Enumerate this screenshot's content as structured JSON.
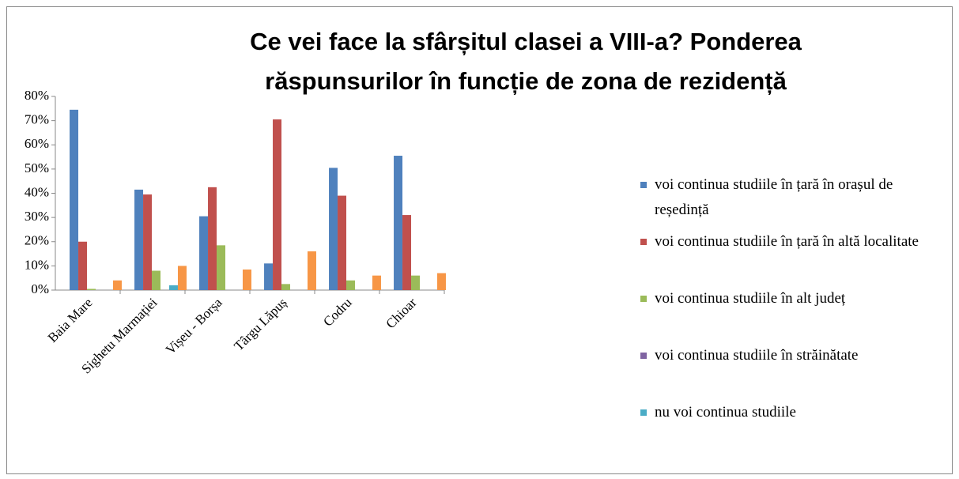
{
  "chart_data": {
    "type": "bar",
    "title": "Ce vei face la sfârșitul clasei a VIII-a? Ponderea răspunsurilor în funcție de zona de rezidență",
    "categories": [
      "Baia Mare",
      "Sighetu Marmației",
      "Vișeu - Borșa",
      "Târgu Lăpuș",
      "Codru",
      "Chioar"
    ],
    "series": [
      {
        "name": "voi continua studiile în țară în orașul de reședință",
        "color": "#4f81bd",
        "values": [
          74.5,
          41.5,
          30.5,
          11,
          50.5,
          55.5
        ]
      },
      {
        "name": "voi continua studiile în țară în altă localitate",
        "color": "#c0504d",
        "values": [
          20,
          39.5,
          42.5,
          70.5,
          39,
          31
        ]
      },
      {
        "name": "voi continua studiile în alt județ",
        "color": "#9bbb59",
        "values": [
          0.5,
          8,
          18.5,
          2.5,
          4,
          6
        ]
      },
      {
        "name": "voi continua studiile în străinătate",
        "color": "#8064a2",
        "values": [
          0,
          0,
          0,
          0,
          0,
          0
        ]
      },
      {
        "name": "nu voi continua studiile",
        "color": "#4bacc6",
        "values": [
          0,
          2,
          0,
          0,
          0,
          0
        ]
      },
      {
        "color": "#f79646",
        "values": [
          4,
          10,
          8.5,
          16,
          6,
          7
        ]
      }
    ],
    "ylim": [
      0,
      80
    ],
    "yticks": [
      {
        "value": 0,
        "label": "0%"
      },
      {
        "value": 10,
        "label": "10%"
      },
      {
        "value": 20,
        "label": "20%"
      },
      {
        "value": 30,
        "label": "30%"
      },
      {
        "value": 40,
        "label": "40%"
      },
      {
        "value": 50,
        "label": "50%"
      },
      {
        "value": 60,
        "label": "60%"
      },
      {
        "value": 70,
        "label": "70%"
      },
      {
        "value": 80,
        "label": "80%"
      }
    ],
    "legend": "right"
  }
}
